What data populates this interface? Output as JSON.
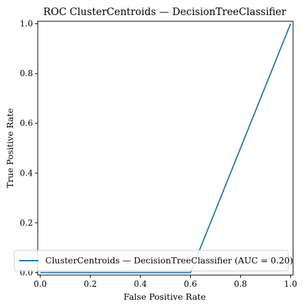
{
  "chart_data": {
    "type": "line",
    "title": "ROC ClusterCentroids — DecisionTreeClassifier",
    "xlabel": "False Positive Rate",
    "ylabel": "True Positive Rate",
    "xlim": [
      -0.01,
      1.01
    ],
    "ylim": [
      -0.01,
      1.01
    ],
    "grid": false,
    "legend_position": "lower-right",
    "x_ticks": [
      "0.0",
      "0.2",
      "0.4",
      "0.6",
      "0.8",
      "1.0"
    ],
    "y_ticks": [
      "0.0",
      "0.2",
      "0.4",
      "0.6",
      "0.8",
      "1.0"
    ],
    "series": [
      {
        "name": "ClusterCentroids — DecisionTreeClassifier (AUC = 0.20)",
        "color": "#1f77b4",
        "x": [
          0.0,
          0.6,
          1.0
        ],
        "y": [
          0.0,
          0.0,
          1.0
        ]
      }
    ]
  }
}
